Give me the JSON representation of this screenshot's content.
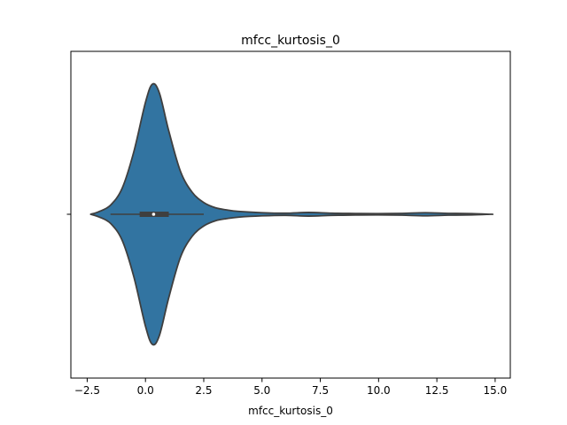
{
  "chart_data": {
    "type": "violin",
    "title": "mfcc_kurtosis_0",
    "xlabel": "mfcc_kurtosis_0",
    "ylabel": "",
    "xlim": [
      -3.2,
      15.65
    ],
    "xticks": [
      -2.5,
      0.0,
      2.5,
      5.0,
      7.5,
      10.0,
      12.5,
      15.0
    ],
    "xtick_labels": [
      "−2.5",
      "0.0",
      "2.5",
      "5.0",
      "7.5",
      "10.0",
      "12.5",
      "15.0"
    ],
    "grid": false,
    "colors": {
      "violin_fill": "#3274a1",
      "violin_edge": "#3f3f3f",
      "box": "#3f3f3f",
      "median": "#ffffff"
    },
    "density_profile": {
      "x": [
        -2.35,
        -2.0,
        -1.5,
        -1.0,
        -0.5,
        0.0,
        0.3,
        0.6,
        1.0,
        1.5,
        2.0,
        2.5,
        3.0,
        3.5,
        4.0,
        5.0,
        6.0,
        7.0,
        8.0,
        9.0,
        10.0,
        11.0,
        12.0,
        13.0,
        14.0,
        14.8
      ],
      "relative_width": [
        0.0,
        0.02,
        0.07,
        0.2,
        0.48,
        0.86,
        1.0,
        0.93,
        0.64,
        0.33,
        0.17,
        0.09,
        0.05,
        0.033,
        0.022,
        0.012,
        0.008,
        0.014,
        0.008,
        0.006,
        0.005,
        0.007,
        0.012,
        0.007,
        0.005,
        0.0
      ]
    },
    "box": {
      "q1": -0.25,
      "median": 0.35,
      "q3": 1.0,
      "whisker_low": -1.5,
      "whisker_high": 2.5
    }
  }
}
